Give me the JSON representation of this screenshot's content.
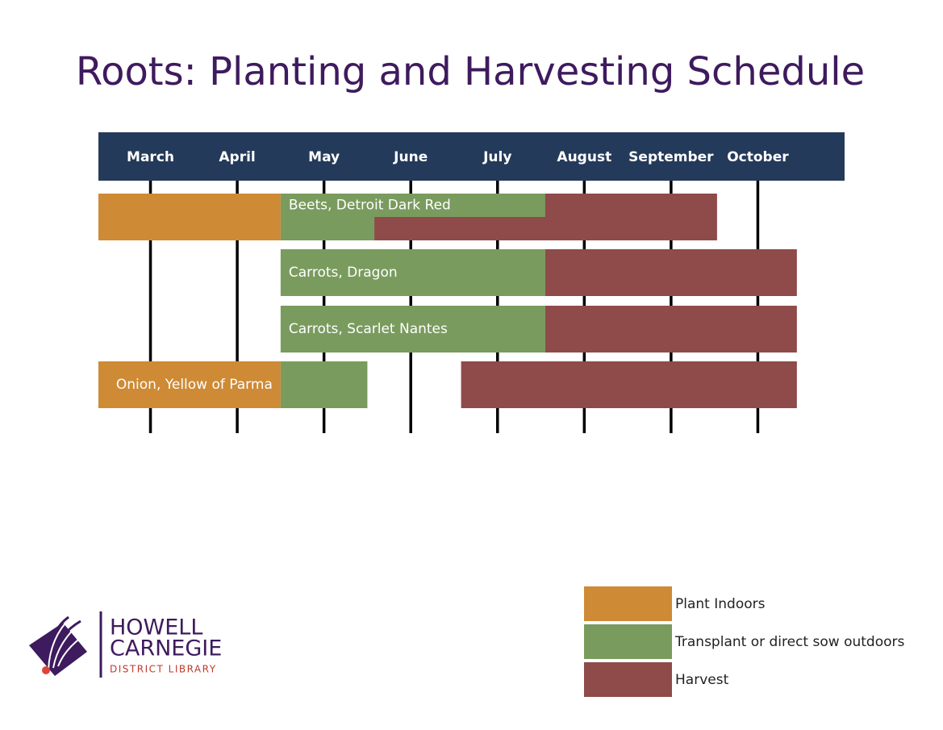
{
  "chart_data": {
    "type": "gantt",
    "title": "Roots: Planting and Harvesting Schedule",
    "categories": [
      "March",
      "April",
      "May",
      "June",
      "July",
      "August",
      "September",
      "October"
    ],
    "xlim": [
      -0.6,
      8
    ],
    "series": [
      {
        "name": "Plant Indoors",
        "color": "#ce8a35"
      },
      {
        "name": "Transplant or direct sow outdoors",
        "color": "#7a9b5e"
      },
      {
        "name": "Harvest",
        "color": "#8f4a4a"
      }
    ],
    "rows": [
      {
        "name": "Beets, Detroit Dark Red",
        "segments": [
          {
            "series": 0,
            "start": -0.6,
            "end": 1.5,
            "part": "full"
          },
          {
            "series": 2,
            "start": 2.58,
            "end": 6.53,
            "part": "full"
          },
          {
            "series": 1,
            "start": 1.5,
            "end": 4.55,
            "part": "top"
          },
          {
            "series": 1,
            "start": 1.5,
            "end": 2.58,
            "part": "bottom"
          }
        ]
      },
      {
        "name": "Carrots, Dragon",
        "segments": [
          {
            "series": 1,
            "start": 1.5,
            "end": 4.55,
            "part": "full"
          },
          {
            "series": 2,
            "start": 4.55,
            "end": 7.45,
            "part": "full"
          }
        ]
      },
      {
        "name": "Carrots, Scarlet Nantes",
        "segments": [
          {
            "series": 1,
            "start": 1.5,
            "end": 4.55,
            "part": "full"
          },
          {
            "series": 2,
            "start": 4.55,
            "end": 7.45,
            "part": "full"
          }
        ]
      },
      {
        "name": "Onion, Yellow of Parma",
        "segments": [
          {
            "series": 0,
            "start": -0.6,
            "end": 1.5,
            "part": "full"
          },
          {
            "series": 1,
            "start": 1.5,
            "end": 2.5,
            "part": "full"
          },
          {
            "series": 2,
            "start": 3.58,
            "end": 7.45,
            "part": "full"
          }
        ]
      }
    ]
  },
  "logo": {
    "line1": "HOWELL",
    "line2": "CARNEGIE",
    "line3": "DISTRICT LIBRARY"
  }
}
